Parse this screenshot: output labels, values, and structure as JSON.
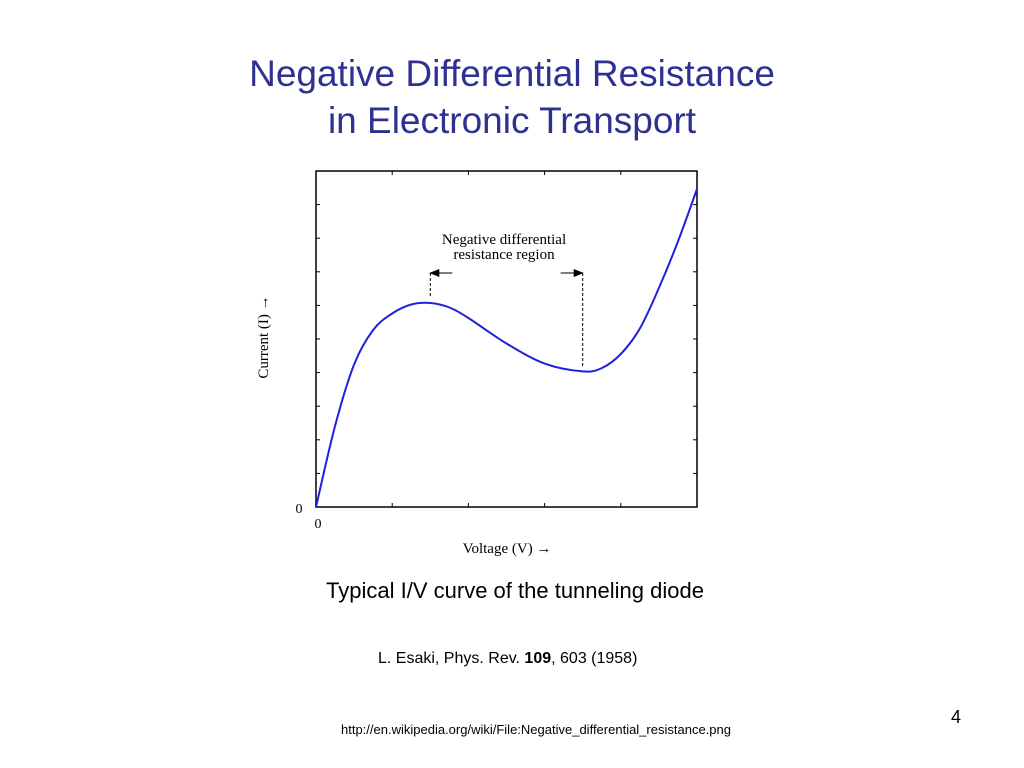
{
  "slide": {
    "title_line1": "Negative Differential Resistance",
    "title_line2": "in Electronic Transport",
    "caption": "Typical I/V curve of the tunneling diode",
    "citation": {
      "prefix": "L. Esaki, Phys. Rev. ",
      "volume": "109",
      "suffix": ", 603 (1958)"
    },
    "page_number": "4",
    "source_url": "http://en.wikipedia.org/wiki/File:Negative_differential_resistance.png",
    "title_color": "#2e3192"
  },
  "chart_data": {
    "type": "line",
    "xlabel": "Voltage (V) →",
    "ylabel": "Current (I) →",
    "x_origin_label": "0",
    "y_origin_label": "0",
    "xlim": [
      0,
      5
    ],
    "ylim": [
      0,
      1
    ],
    "x_tick_count": 5,
    "y_tick_count": 10,
    "series": [
      {
        "color": "#1f1fe0",
        "points": [
          {
            "x": 0.0,
            "y": 0.0
          },
          {
            "x": 0.25,
            "y": 0.27
          },
          {
            "x": 0.5,
            "y": 0.475
          },
          {
            "x": 0.75,
            "y": 0.59
          },
          {
            "x": 1.0,
            "y": 0.645
          },
          {
            "x": 1.25,
            "y": 0.675
          },
          {
            "x": 1.5,
            "y": 0.68
          },
          {
            "x": 1.75,
            "y": 0.665
          },
          {
            "x": 2.0,
            "y": 0.63
          },
          {
            "x": 2.5,
            "y": 0.545
          },
          {
            "x": 3.0,
            "y": 0.478
          },
          {
            "x": 3.5,
            "y": 0.452
          },
          {
            "x": 3.75,
            "y": 0.463
          },
          {
            "x": 4.0,
            "y": 0.51
          },
          {
            "x": 4.25,
            "y": 0.595
          },
          {
            "x": 4.5,
            "y": 0.73
          },
          {
            "x": 4.75,
            "y": 0.885
          },
          {
            "x": 5.0,
            "y": 1.06
          }
        ]
      }
    ],
    "annotation": {
      "line1": "Negative differential",
      "line2": "resistance region",
      "x_start": 1.5,
      "x_end": 3.5
    },
    "grid": false
  }
}
